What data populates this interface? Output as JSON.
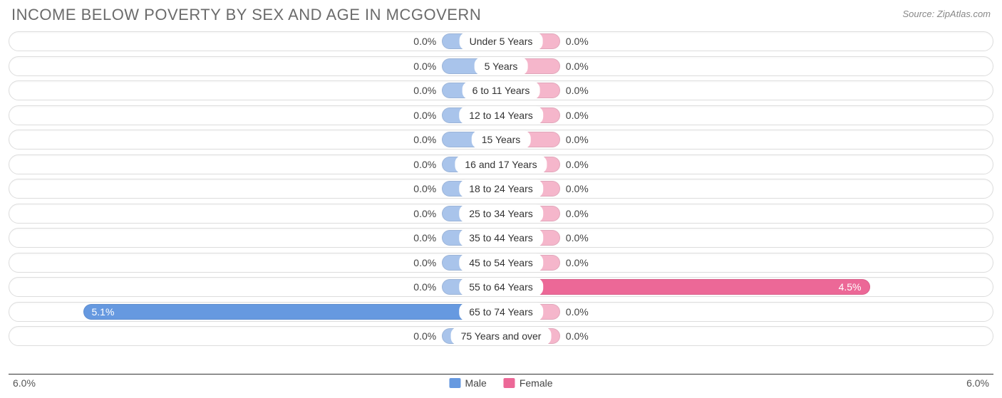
{
  "title": "INCOME BELOW POVERTY BY SEX AND AGE IN MCGOVERN",
  "source": "Source: ZipAtlas.com",
  "chart": {
    "type": "diverging-bar",
    "axis_max": 6.0,
    "axis_max_label": "6.0%",
    "min_bar_pct": 12.0,
    "colors": {
      "male_zero": "#a9c4eb",
      "male_nonzero": "#6699e0",
      "female_zero": "#f5b6cb",
      "female_nonzero": "#ec6897",
      "track_border": "#dddddd",
      "track_bg": "#ffffff",
      "text": "#444444",
      "cat_text": "#333333",
      "axis_line": "#333333"
    },
    "legend": {
      "male": {
        "label": "Male",
        "color": "#6699e0"
      },
      "female": {
        "label": "Female",
        "color": "#ec6897"
      }
    },
    "categories": [
      {
        "label": "Under 5 Years",
        "male": 0.0,
        "female": 0.0,
        "male_label": "0.0%",
        "female_label": "0.0%"
      },
      {
        "label": "5 Years",
        "male": 0.0,
        "female": 0.0,
        "male_label": "0.0%",
        "female_label": "0.0%"
      },
      {
        "label": "6 to 11 Years",
        "male": 0.0,
        "female": 0.0,
        "male_label": "0.0%",
        "female_label": "0.0%"
      },
      {
        "label": "12 to 14 Years",
        "male": 0.0,
        "female": 0.0,
        "male_label": "0.0%",
        "female_label": "0.0%"
      },
      {
        "label": "15 Years",
        "male": 0.0,
        "female": 0.0,
        "male_label": "0.0%",
        "female_label": "0.0%"
      },
      {
        "label": "16 and 17 Years",
        "male": 0.0,
        "female": 0.0,
        "male_label": "0.0%",
        "female_label": "0.0%"
      },
      {
        "label": "18 to 24 Years",
        "male": 0.0,
        "female": 0.0,
        "male_label": "0.0%",
        "female_label": "0.0%"
      },
      {
        "label": "25 to 34 Years",
        "male": 0.0,
        "female": 0.0,
        "male_label": "0.0%",
        "female_label": "0.0%"
      },
      {
        "label": "35 to 44 Years",
        "male": 0.0,
        "female": 0.0,
        "male_label": "0.0%",
        "female_label": "0.0%"
      },
      {
        "label": "45 to 54 Years",
        "male": 0.0,
        "female": 0.0,
        "male_label": "0.0%",
        "female_label": "0.0%"
      },
      {
        "label": "55 to 64 Years",
        "male": 0.0,
        "female": 4.5,
        "male_label": "0.0%",
        "female_label": "4.5%"
      },
      {
        "label": "65 to 74 Years",
        "male": 5.1,
        "female": 0.0,
        "male_label": "5.1%",
        "female_label": "0.0%"
      },
      {
        "label": "75 Years and over",
        "male": 0.0,
        "female": 0.0,
        "male_label": "0.0%",
        "female_label": "0.0%"
      }
    ]
  }
}
